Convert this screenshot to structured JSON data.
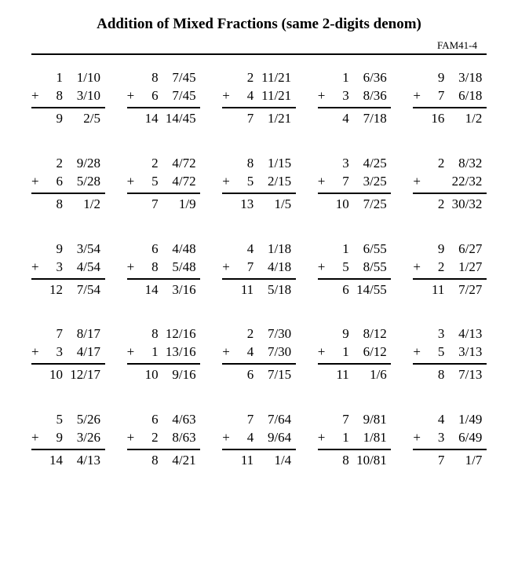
{
  "title": "Addition of Mixed Fractions (same 2-digits denom)",
  "sheet_code": "FAM41-4",
  "problems": [
    [
      {
        "w1": "1",
        "f1": "1/10",
        "w2": "8",
        "f2": "3/10",
        "ws": "9",
        "fs": "2/5"
      },
      {
        "w1": "8",
        "f1": "7/45",
        "w2": "6",
        "f2": "7/45",
        "ws": "14",
        "fs": "14/45"
      },
      {
        "w1": "2",
        "f1": "11/21",
        "w2": "4",
        "f2": "11/21",
        "ws": "7",
        "fs": "1/21"
      },
      {
        "w1": "1",
        "f1": "6/36",
        "w2": "3",
        "f2": "8/36",
        "ws": "4",
        "fs": "7/18"
      },
      {
        "w1": "9",
        "f1": "3/18",
        "w2": "7",
        "f2": "6/18",
        "ws": "16",
        "fs": "1/2"
      }
    ],
    [
      {
        "w1": "2",
        "f1": "9/28",
        "w2": "6",
        "f2": "5/28",
        "ws": "8",
        "fs": "1/2"
      },
      {
        "w1": "2",
        "f1": "4/72",
        "w2": "5",
        "f2": "4/72",
        "ws": "7",
        "fs": "1/9"
      },
      {
        "w1": "8",
        "f1": "1/15",
        "w2": "5",
        "f2": "2/15",
        "ws": "13",
        "fs": "1/5"
      },
      {
        "w1": "3",
        "f1": "4/25",
        "w2": "7",
        "f2": "3/25",
        "ws": "10",
        "fs": "7/25"
      },
      {
        "w1": "2",
        "f1": "8/32",
        "w2": "",
        "f2": "22/32",
        "ws": "2",
        "fs": "30/32"
      }
    ],
    [
      {
        "w1": "9",
        "f1": "3/54",
        "w2": "3",
        "f2": "4/54",
        "ws": "12",
        "fs": "7/54"
      },
      {
        "w1": "6",
        "f1": "4/48",
        "w2": "8",
        "f2": "5/48",
        "ws": "14",
        "fs": "3/16"
      },
      {
        "w1": "4",
        "f1": "1/18",
        "w2": "7",
        "f2": "4/18",
        "ws": "11",
        "fs": "5/18"
      },
      {
        "w1": "1",
        "f1": "6/55",
        "w2": "5",
        "f2": "8/55",
        "ws": "6",
        "fs": "14/55"
      },
      {
        "w1": "9",
        "f1": "6/27",
        "w2": "2",
        "f2": "1/27",
        "ws": "11",
        "fs": "7/27"
      }
    ],
    [
      {
        "w1": "7",
        "f1": "8/17",
        "w2": "3",
        "f2": "4/17",
        "ws": "10",
        "fs": "12/17"
      },
      {
        "w1": "8",
        "f1": "12/16",
        "w2": "1",
        "f2": "13/16",
        "ws": "10",
        "fs": "9/16"
      },
      {
        "w1": "2",
        "f1": "7/30",
        "w2": "4",
        "f2": "7/30",
        "ws": "6",
        "fs": "7/15"
      },
      {
        "w1": "9",
        "f1": "8/12",
        "w2": "1",
        "f2": "6/12",
        "ws": "11",
        "fs": "1/6"
      },
      {
        "w1": "3",
        "f1": "4/13",
        "w2": "5",
        "f2": "3/13",
        "ws": "8",
        "fs": "7/13"
      }
    ],
    [
      {
        "w1": "5",
        "f1": "5/26",
        "w2": "9",
        "f2": "3/26",
        "ws": "14",
        "fs": "4/13"
      },
      {
        "w1": "6",
        "f1": "4/63",
        "w2": "2",
        "f2": "8/63",
        "ws": "8",
        "fs": "4/21"
      },
      {
        "w1": "7",
        "f1": "7/64",
        "w2": "4",
        "f2": "9/64",
        "ws": "11",
        "fs": "1/4"
      },
      {
        "w1": "7",
        "f1": "9/81",
        "w2": "1",
        "f2": "1/81",
        "ws": "8",
        "fs": "10/81"
      },
      {
        "w1": "4",
        "f1": "1/49",
        "w2": "3",
        "f2": "6/49",
        "ws": "7",
        "fs": "1/7"
      }
    ]
  ]
}
